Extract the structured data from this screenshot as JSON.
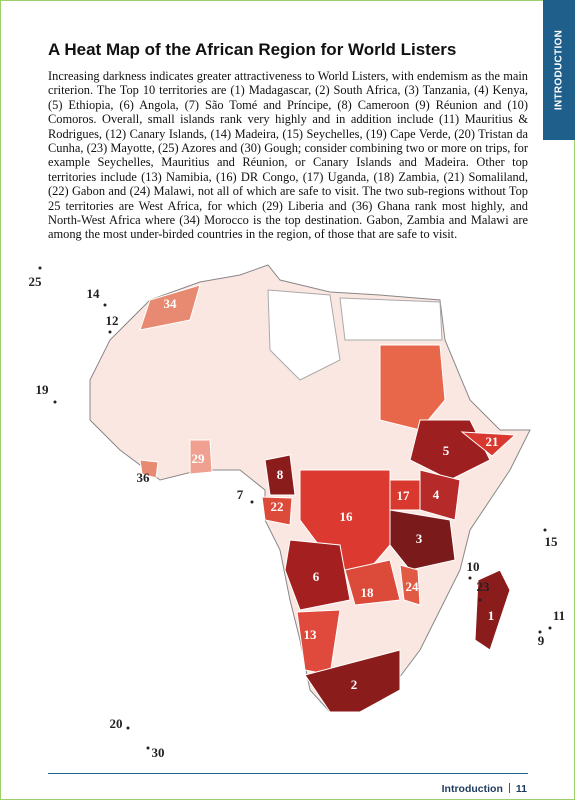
{
  "side_tab": "INTRODUCTION",
  "title": "A Heat Map of the African Region for World Listers",
  "body": "Increasing darkness indicates greater attractiveness to World Listers, with endemism as the main criterion. The Top 10 territories are (1) Madagascar, (2) South Africa, (3) Tanzania, (4) Kenya, (5) Ethiopia, (6) Angola, (7) São Tomé and Príncipe, (8) Cameroon (9) Réunion and (10) Comoros. Overall, small islands rank very highly and in addition include (11) Mauritius & Rodrigues, (12) Canary Islands, (14) Madeira, (15) Seychelles, (19) Cape Verde, (20) Tristan da Cunha, (23) Mayotte, (25) Azores and (30) Gough; consider combining two or more on trips, for example Seychelles, Mauritius and Réunion, or Canary Islands and Madeira. Other top territories include (13) Namibia, (16) DR Congo, (17) Uganda, (18) Zambia, (21) Somaliland, (22) Gabon and (24) Malawi, not all of which are safe to visit. The two sub-regions without Top 25 territories are West Africa, for which (29) Liberia and (36) Ghana rank most highly, and North-West Africa where (34) Morocco is the top destination. Gabon, Zambia and Malawi are among the most under-birded countries in the region, of those that are safe to visit.",
  "map": {
    "labels": [
      "25",
      "14",
      "12",
      "34",
      "19",
      "21",
      "5",
      "29",
      "8",
      "36",
      "7",
      "17",
      "4",
      "22",
      "16",
      "3",
      "15",
      "10",
      "6",
      "23",
      "18",
      "24",
      "1",
      "11",
      "9",
      "13",
      "2",
      "20",
      "30"
    ]
  },
  "footer": {
    "section": "Introduction",
    "page": "11"
  }
}
